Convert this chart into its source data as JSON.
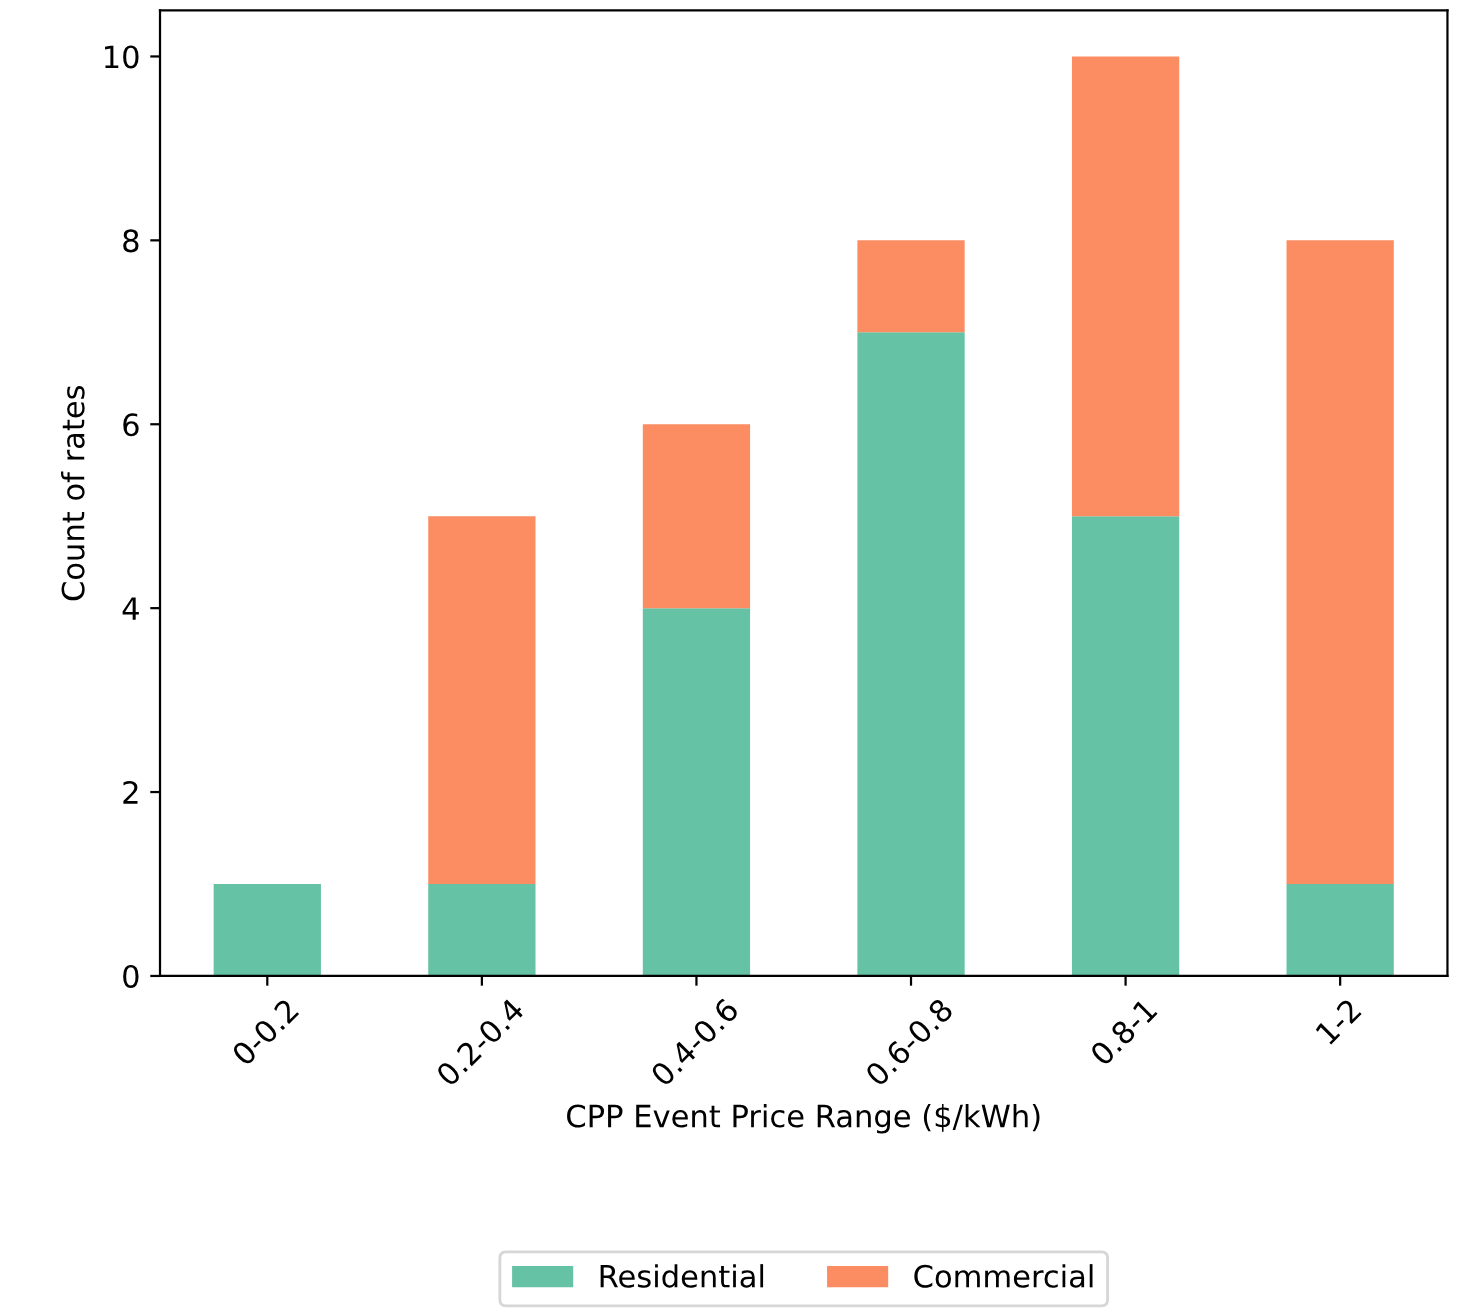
{
  "chart_data": {
    "type": "bar",
    "stacked": true,
    "xlabel": "CPP Event Price Range ($/kWh)",
    "ylabel": "Count of rates",
    "categories": [
      "0-0.2",
      "0.2-0.4",
      "0.4-0.6",
      "0.6-0.8",
      "0.8-1",
      "1-2"
    ],
    "series": [
      {
        "name": "Residential",
        "color": "#66c2a5",
        "values": [
          1,
          1,
          4,
          7,
          5,
          1
        ]
      },
      {
        "name": "Commercial",
        "color": "#fc8d62",
        "values": [
          0,
          4,
          2,
          1,
          5,
          7
        ]
      }
    ],
    "ylim": [
      0,
      10.5
    ],
    "yticks": [
      0,
      2,
      4,
      6,
      8,
      10
    ],
    "grid": false,
    "legend": "bottom"
  }
}
